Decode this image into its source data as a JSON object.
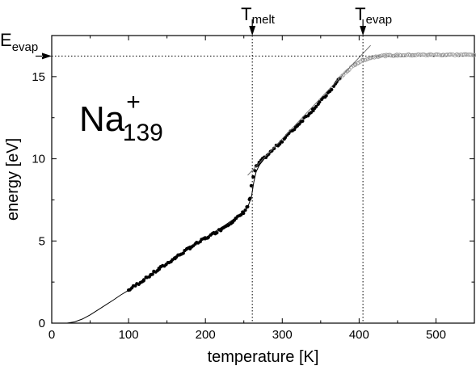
{
  "chart_data": {
    "type": "scatter",
    "title": "",
    "xlabel": "temperature [K]",
    "ylabel": "energy [eV]",
    "xlim": [
      0,
      550
    ],
    "ylim": [
      0,
      17.5
    ],
    "xticks": [
      0,
      100,
      200,
      300,
      400,
      500
    ],
    "yticks": [
      0,
      5,
      10,
      15
    ],
    "grid": false,
    "species": {
      "base": "Na",
      "charge": "+",
      "size": "139"
    },
    "annotations": {
      "t_melt": {
        "base": "T",
        "sub": "melt",
        "x": 261
      },
      "t_evap": {
        "base": "T",
        "sub": "evap",
        "x": 405
      },
      "e_evap": {
        "base": "E",
        "sub": "evap",
        "y": 16.25
      }
    },
    "series": [
      {
        "style": "filled-circles",
        "color": "#000000",
        "x": [
          100,
          120,
          140,
          160,
          180,
          200,
          220,
          240,
          250,
          255,
          258,
          260,
          262,
          264,
          266,
          270,
          280,
          290,
          300,
          320,
          340,
          360,
          375
        ],
        "y": [
          2.0,
          2.65,
          3.3,
          3.95,
          4.6,
          5.15,
          5.7,
          6.35,
          6.75,
          7.1,
          7.6,
          8.3,
          8.9,
          9.25,
          9.5,
          9.75,
          10.2,
          10.65,
          11.1,
          12.05,
          13.0,
          14.0,
          14.9
        ]
      },
      {
        "style": "open-circles",
        "color": "#999999",
        "x": [
          375,
          385,
          395,
          405,
          415,
          425,
          435,
          450,
          470,
          490,
          510,
          530,
          550
        ],
        "y": [
          14.9,
          15.35,
          15.75,
          16.0,
          16.15,
          16.25,
          16.28,
          16.3,
          16.32,
          16.33,
          16.33,
          16.33,
          16.33
        ]
      },
      {
        "style": "thin-line",
        "color": "#000000",
        "x": [
          20,
          30,
          40,
          50,
          60,
          70,
          80,
          90,
          100,
          125,
          150,
          175,
          200,
          225,
          250,
          255,
          260,
          263,
          266,
          270,
          280
        ],
        "y": [
          0,
          0.08,
          0.25,
          0.5,
          0.8,
          1.1,
          1.4,
          1.72,
          2.0,
          2.8,
          3.6,
          4.4,
          5.2,
          5.95,
          6.75,
          7.05,
          7.7,
          8.6,
          9.2,
          9.6,
          10.2
        ]
      },
      {
        "style": "fit-line",
        "color": "#666666",
        "x": [
          255,
          415
        ],
        "y": [
          9.0,
          16.9
        ]
      }
    ]
  }
}
